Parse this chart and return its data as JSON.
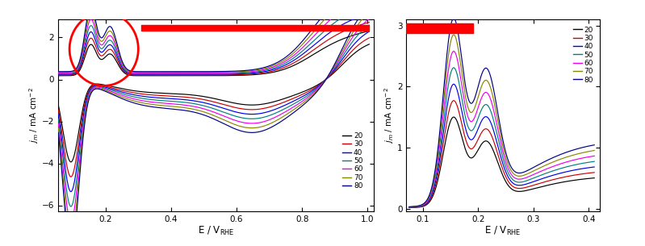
{
  "temperatures": [
    20,
    30,
    40,
    50,
    60,
    70,
    80
  ],
  "colors": [
    "#000000",
    "#cc0000",
    "#0000ee",
    "#008080",
    "#ee00ee",
    "#888800",
    "#000088"
  ],
  "left_xlim": [
    0.055,
    1.02
  ],
  "left_ylim": [
    -6.3,
    2.85
  ],
  "right_xlim": [
    0.07,
    0.42
  ],
  "right_ylim": [
    -0.05,
    3.1
  ],
  "left_xticks": [
    0.2,
    0.4,
    0.6,
    0.8,
    1.0
  ],
  "right_xticks": [
    0.1,
    0.2,
    0.3,
    0.4
  ],
  "left_yticks": [
    -6,
    -4,
    -2,
    0,
    2
  ],
  "right_yticks": [
    0,
    1,
    2,
    3
  ],
  "legend_labels": [
    "20",
    "30",
    "40",
    "50",
    "60",
    "70",
    "80"
  ],
  "scale_base": 1.0,
  "scale_step": 0.018,
  "background_color": "#ffffff"
}
